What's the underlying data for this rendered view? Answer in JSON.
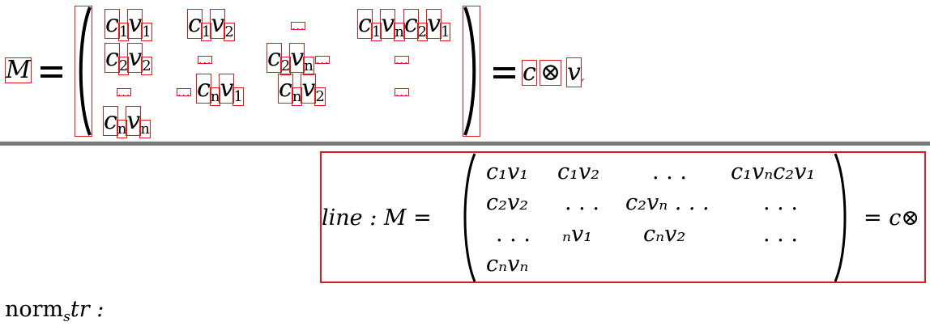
{
  "top": {
    "lhs": "M",
    "equals": "=",
    "entries": {
      "r1c1_a": "c",
      "r1c1_a_sub": "1",
      "r1c1_b": "v",
      "r1c1_b_sub": "1",
      "r1c2_a": "c",
      "r1c2_a_sub": "1",
      "r1c2_b": "v",
      "r1c2_b_sub": "2",
      "r1c3": "...",
      "r1c4_a": "c",
      "r1c4_a_sub": "1",
      "r1c4_b": "v",
      "r1c4_b_sub": "n",
      "r1c4_c": "c",
      "r1c4_c_sub": "2",
      "r1c4_d": "v",
      "r1c4_d_sub": "1",
      "r2c1_a": "c",
      "r2c1_a_sub": "2",
      "r2c1_b": "v",
      "r2c1_b_sub": "2",
      "r2c2": "...",
      "r2c3_a": "c",
      "r2c3_a_sub": "2",
      "r2c3_b": "v",
      "r2c3_b_sub": "n",
      "r2c3_dots": "...",
      "r2c4": "...",
      "r3c1": "...",
      "r3c2_dots": "...",
      "r3c2_a": "c",
      "r3c2_a_sub": "n",
      "r3c2_b": "v",
      "r3c2_b_sub": "1",
      "r3c3_a": "c",
      "r3c3_a_sub": "n",
      "r3c3_b": "v",
      "r3c3_b_sub": "2",
      "r3c4": "...",
      "r4c1_a": "c",
      "r4c1_a_sub": "n",
      "r4c1_b": "v",
      "r4c1_b_sub": "n"
    },
    "rhs_c": "c",
    "otimes": "⊗",
    "rhs_v": "v",
    "rhs_comma": ","
  },
  "second": {
    "prefix": "line : M =",
    "rows": [
      [
        "c₁v₁",
        "c₁v₂",
        ". . .",
        "c₁vₙc₂v₁"
      ],
      [
        "c₂v₂",
        ". . .",
        "c₂vₙ . . .",
        ". . ."
      ],
      [
        ". . .",
        "ₙv₁",
        "cₙv₂",
        ". . ."
      ],
      [
        "cₙvₙ",
        "",
        "",
        ""
      ]
    ],
    "suffix": "= c⊗"
  },
  "norm": {
    "text": "norm",
    "sub": "s",
    "rest": "tr :"
  }
}
